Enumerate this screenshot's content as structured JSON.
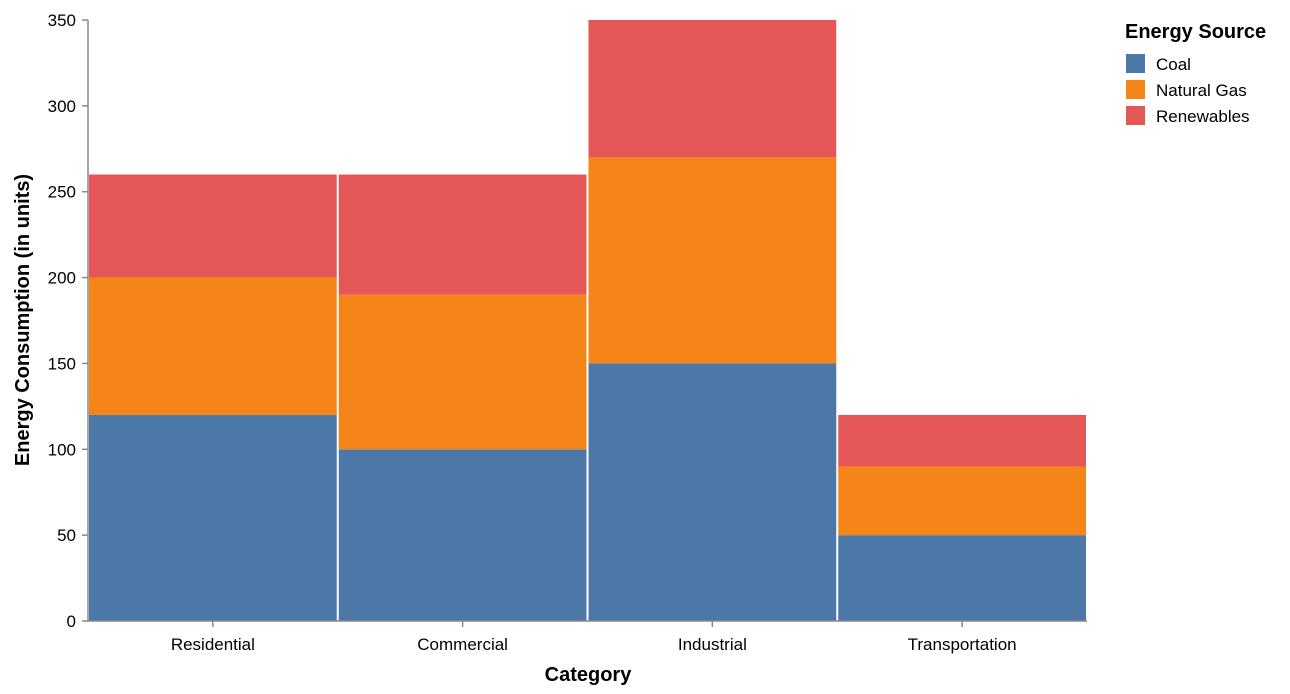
{
  "chart_data": {
    "type": "bar",
    "stacked": true,
    "categories": [
      "Residential",
      "Commercial",
      "Industrial",
      "Transportation"
    ],
    "series": [
      {
        "name": "Coal",
        "values": [
          120,
          100,
          150,
          50
        ],
        "color": "#4c78a8"
      },
      {
        "name": "Natural Gas",
        "values": [
          80,
          90,
          120,
          40
        ],
        "color": "#f58518"
      },
      {
        "name": "Renewables",
        "values": [
          60,
          70,
          80,
          30
        ],
        "color": "#e45756"
      }
    ],
    "xlabel": "Category",
    "ylabel": "Energy Consumption (in units)",
    "ylim": [
      0,
      350
    ],
    "yticks": [
      0,
      50,
      100,
      150,
      200,
      250,
      300,
      350
    ],
    "legend_title": "Energy Source",
    "legend_position": "top-right",
    "grid": false
  }
}
